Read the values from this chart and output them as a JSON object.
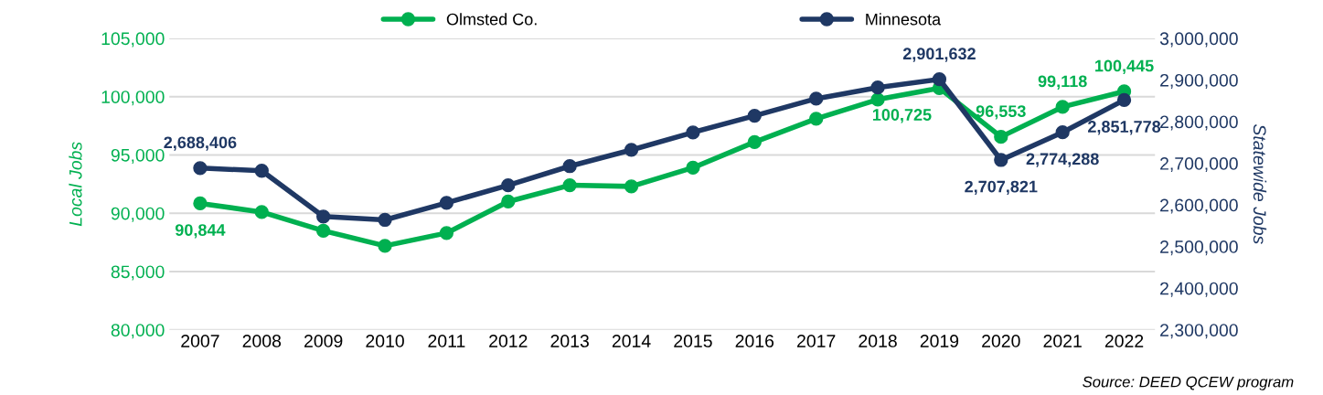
{
  "chart_data": {
    "type": "line",
    "categories": [
      "2007",
      "2008",
      "2009",
      "2010",
      "2011",
      "2012",
      "2013",
      "2014",
      "2015",
      "2016",
      "2017",
      "2018",
      "2019",
      "2020",
      "2021",
      "2022"
    ],
    "series": [
      {
        "name": "Olmsted Co.",
        "color": "#00b050",
        "values": [
          90844,
          90100,
          88500,
          87200,
          88300,
          91000,
          92400,
          92300,
          93900,
          96100,
          98100,
          99750,
          100725,
          96553,
          99118,
          100445
        ],
        "value_labels": [
          "90,844",
          null,
          null,
          null,
          null,
          null,
          null,
          null,
          null,
          null,
          null,
          null,
          "100,725",
          "96,553",
          "99,118",
          "100,445"
        ]
      },
      {
        "name": "Minnesota",
        "color": "#1f3864",
        "axis": "y2",
        "values": [
          2688406,
          2682000,
          2572000,
          2564000,
          2605000,
          2647000,
          2693000,
          2732000,
          2774000,
          2814000,
          2855000,
          2882000,
          2901632,
          2707821,
          2774288,
          2851778
        ],
        "value_labels": [
          "2,688,406",
          null,
          null,
          null,
          null,
          null,
          null,
          null,
          null,
          null,
          null,
          null,
          "2,901,632",
          "2,707,821",
          "2,774,288",
          "2,851,778"
        ]
      }
    ],
    "ylabel": "Local Jobs",
    "y2label": "Statewide Jobs",
    "ylim": [
      80000,
      105000
    ],
    "yticks": [
      {
        "value": 80000,
        "label": "80,000"
      },
      {
        "value": 85000,
        "label": "85,000"
      },
      {
        "value": 90000,
        "label": "90,000"
      },
      {
        "value": 95000,
        "label": "95,000"
      },
      {
        "value": 100000,
        "label": "100,000"
      },
      {
        "value": 105000,
        "label": "105,000"
      }
    ],
    "y2lim": [
      2300000,
      3000000
    ],
    "y2ticks": [
      {
        "value": 2300000,
        "label": "2,300,000"
      },
      {
        "value": 2400000,
        "label": "2,400,000"
      },
      {
        "value": 2500000,
        "label": "2,500,000"
      },
      {
        "value": 2600000,
        "label": "2,600,000"
      },
      {
        "value": 2700000,
        "label": "2,700,000"
      },
      {
        "value": 2800000,
        "label": "2,800,000"
      },
      {
        "value": 2900000,
        "label": "2,900,000"
      },
      {
        "value": 3000000,
        "label": "3,000,000"
      }
    ],
    "grid": "y",
    "legend": "top",
    "marker": "circle",
    "line_style": "solid",
    "annotations": [
      "Source: DEED QCEW program"
    ]
  }
}
